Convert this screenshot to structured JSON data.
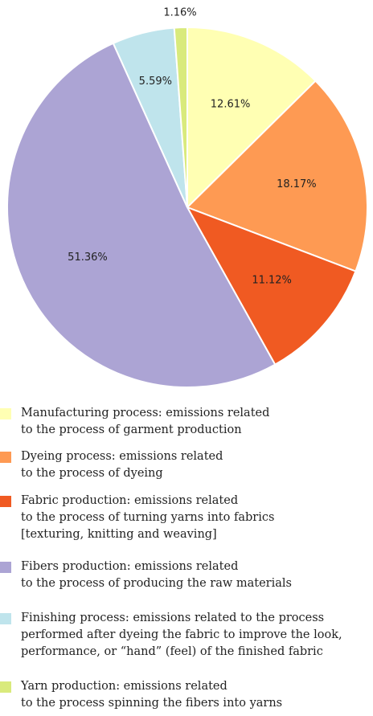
{
  "chart_data": {
    "type": "pie",
    "slices": [
      {
        "label": "12.61%",
        "value": 12.61,
        "color": "#FFFFB3"
      },
      {
        "label": "18.17%",
        "value": 18.17,
        "color": "#FE9A53"
      },
      {
        "label": "11.12%",
        "value": 11.12,
        "color": "#F05A22"
      },
      {
        "label": "51.36%",
        "value": 51.36,
        "color": "#ACA4D4"
      },
      {
        "label": "5.59%",
        "value": 5.59,
        "color": "#BFE4EC"
      },
      {
        "label": "1.16%",
        "value": 1.16,
        "color": "#D9EA7C"
      }
    ]
  },
  "legend": [
    {
      "text": "Manufacturing process: emissions related\nto the process of garment production",
      "color": "#FFFFB3"
    },
    {
      "text": "Dyeing process: emissions related\nto the process of dyeing",
      "color": "#FE9A53"
    },
    {
      "text": "Fabric production: emissions related\nto the process of turning yarns into fabrics\n[texturing, knitting and weaving]",
      "color": "#F05A22"
    },
    {
      "text": "Fibers production: emissions related\nto the process of producing the raw materials",
      "color": "#ACA4D4"
    },
    {
      "text": "Finishing process: emissions related to the process\nperformed after dyeing the fabric to improve the look,\nperformance, or “hand” (feel) of the finished fabric",
      "color": "#BFE4EC"
    },
    {
      "text": "Yarn production: emissions related\nto the process spinning the fibers into yarns",
      "color": "#D9EA7C"
    }
  ]
}
